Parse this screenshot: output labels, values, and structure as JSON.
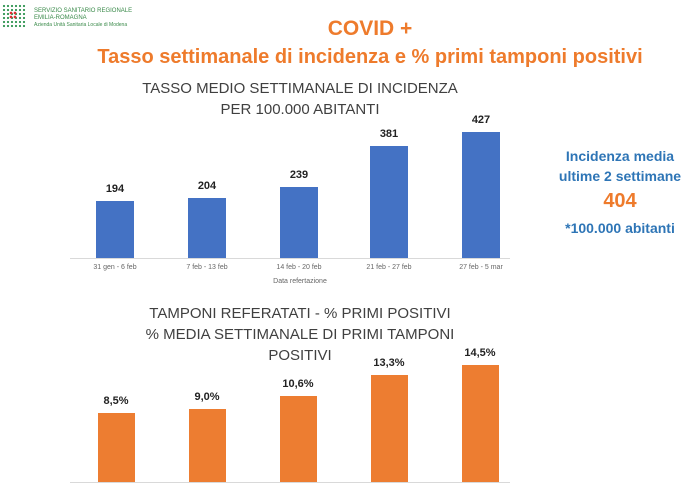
{
  "logo": {
    "line1": "SERVIZIO SANITARIO REGIONALE",
    "line2": "EMILIA-ROMAGNA",
    "line3": "Azienda Unità Sanitaria Locale di Modena"
  },
  "title": "COVID +",
  "subtitle": "Tasso settimanale di incidenza e % primi tamponi positivi",
  "side": {
    "line1": "Incidenza media",
    "line2": "ultime 2 settimane",
    "value": "404",
    "line3": "*100.000 abitanti"
  },
  "colors": {
    "blue": "#4472c4",
    "orange": "#ed7d31",
    "accent": "#ee7b2c"
  },
  "chart_data": [
    {
      "type": "bar",
      "title": [
        "TASSO MEDIO SETTIMANALE DI INCIDENZA",
        "PER 100.000 ABITANTI"
      ],
      "categories": [
        "31 gen - 6 feb",
        "7 feb - 13 feb",
        "14 feb - 20 feb",
        "21 feb - 27 feb",
        "27 feb - 5 mar"
      ],
      "values": [
        194,
        204,
        239,
        381,
        427
      ],
      "labels": [
        "194",
        "204",
        "239",
        "381",
        "427"
      ],
      "xlabel": "Data refertazione",
      "ylim": [
        0,
        427
      ]
    },
    {
      "type": "bar",
      "title": [
        "TAMPONI REFERATATI - % PRIMI POSITIVI",
        "% MEDIA SETTIMANALE DI PRIMI TAMPONI",
        "POSITIVI"
      ],
      "values": [
        8.5,
        9.0,
        10.6,
        13.3,
        14.5
      ],
      "labels": [
        "8,5%",
        "9,0%",
        "10,6%",
        "13,3%",
        "14,5%"
      ],
      "ylim": [
        0,
        14.5
      ]
    }
  ]
}
